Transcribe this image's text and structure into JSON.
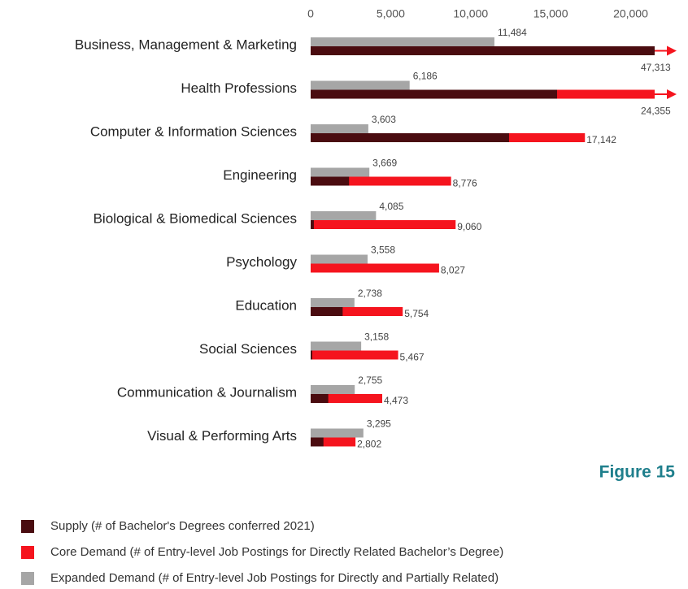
{
  "chart_data": {
    "type": "bar",
    "orientation": "horizontal",
    "annotation": "Figure 15",
    "categories": [
      "Business, Management & Marketing",
      "Health Professions",
      "Computer & Information Sciences",
      "Engineering",
      "Biological & Biomedical Sciences",
      "Psychology",
      "Education",
      "Social Sciences",
      "Communication & Journalism",
      "Visual & Performing Arts"
    ],
    "series": [
      {
        "name": "Supply (# of Bachelor's Degrees conferred 2021)",
        "color": "#4a0c10",
        "values": [
          22000,
          15400,
          12400,
          2400,
          200,
          0,
          2000,
          100,
          1100,
          800
        ]
      },
      {
        "name": "Core Demand (# of Entry-level Job Postings for Directly Related Bachelor’s Degree)",
        "color": "#f5141e",
        "values": [
          47313,
          24355,
          17142,
          8776,
          9060,
          8027,
          5754,
          5467,
          4473,
          2802
        ],
        "value_labels": [
          "47,313",
          "24,355",
          "17,142",
          "8,776",
          "9,060",
          "8,027",
          "5,754",
          "5,467",
          "4,473",
          "2,802"
        ]
      },
      {
        "name": "Expanded Demand (# of Entry-level Job Postings for Directly and Partially Related)",
        "color": "#a6a6a6",
        "values": [
          11484,
          6186,
          3603,
          3669,
          4085,
          3558,
          2738,
          3158,
          2755,
          3295
        ],
        "value_labels": [
          "11,484",
          "6,186",
          "3,603",
          "3,669",
          "4,085",
          "3,558",
          "2,738",
          "3,158",
          "2,755",
          "3,295"
        ]
      }
    ],
    "xlim": [
      0,
      21500
    ],
    "xticks": [
      0,
      {
        "value": 5000,
        "label": "5,000"
      },
      {
        "value": 10000,
        "label": "10,000"
      },
      {
        "value": 15000,
        "label": "15,000"
      },
      {
        "value": 20000,
        "label": "20,000"
      }
    ]
  }
}
